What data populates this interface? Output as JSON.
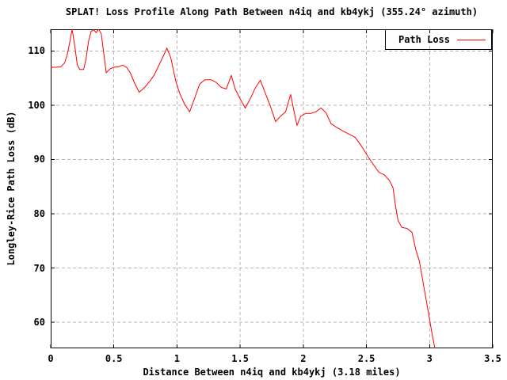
{
  "chart_data": {
    "type": "line",
    "title": "SPLAT! Loss Profile Along Path Between n4iq and kb4ykj (355.24° azimuth)",
    "xlabel": "Distance Between n4iq and kb4ykj (3.18 miles)",
    "ylabel": "Longley-Rice Path Loss (dB)",
    "legend_position": "top-right-inside-box",
    "grid": true,
    "colors": {
      "line": "#ff0000",
      "grid": "#b4b4b4",
      "border": "#000000",
      "background": "#ffffff"
    },
    "xlim": [
      0,
      3.5
    ],
    "ylim": [
      55.2,
      114.0
    ],
    "xticks": [
      0,
      0.5,
      1,
      1.5,
      2,
      2.5,
      3,
      3.5
    ],
    "xtick_labels": [
      "0",
      "0.5",
      "1",
      "1.5",
      "2",
      "2.5",
      "3",
      "3.5"
    ],
    "yticks": [
      60,
      70,
      80,
      90,
      100,
      110
    ],
    "ytick_labels": [
      "60",
      "70",
      "80",
      "90",
      "100",
      "110"
    ],
    "legend": [
      {
        "name": "Path Loss",
        "color": "#ff0000"
      }
    ],
    "series": [
      {
        "name": "Path Loss",
        "color": "#ff0000",
        "points": [
          [
            0.0,
            107.0
          ],
          [
            0.04,
            107.0
          ],
          [
            0.08,
            107.1
          ],
          [
            0.11,
            107.8
          ],
          [
            0.13,
            109.2
          ],
          [
            0.15,
            111.5
          ],
          [
            0.17,
            114.0
          ],
          [
            0.19,
            111.0
          ],
          [
            0.21,
            107.5
          ],
          [
            0.23,
            106.6
          ],
          [
            0.26,
            106.6
          ],
          [
            0.28,
            108.5
          ],
          [
            0.3,
            111.8
          ],
          [
            0.32,
            113.6
          ],
          [
            0.34,
            113.9
          ],
          [
            0.36,
            113.4
          ],
          [
            0.38,
            114.0
          ],
          [
            0.4,
            113.2
          ],
          [
            0.42,
            109.5
          ],
          [
            0.44,
            106.0
          ],
          [
            0.47,
            106.7
          ],
          [
            0.5,
            107.0
          ],
          [
            0.54,
            107.1
          ],
          [
            0.57,
            107.4
          ],
          [
            0.6,
            107.0
          ],
          [
            0.63,
            106.0
          ],
          [
            0.66,
            104.3
          ],
          [
            0.7,
            102.4
          ],
          [
            0.74,
            103.2
          ],
          [
            0.78,
            104.3
          ],
          [
            0.82,
            105.6
          ],
          [
            0.87,
            108.0
          ],
          [
            0.92,
            110.5
          ],
          [
            0.95,
            108.8
          ],
          [
            0.99,
            104.5
          ],
          [
            1.02,
            102.3
          ],
          [
            1.06,
            100.2
          ],
          [
            1.1,
            98.8
          ],
          [
            1.14,
            101.3
          ],
          [
            1.18,
            103.9
          ],
          [
            1.22,
            104.7
          ],
          [
            1.27,
            104.7
          ],
          [
            1.31,
            104.2
          ],
          [
            1.35,
            103.3
          ],
          [
            1.39,
            103.0
          ],
          [
            1.43,
            105.5
          ],
          [
            1.46,
            103.0
          ],
          [
            1.5,
            101.2
          ],
          [
            1.54,
            99.5
          ],
          [
            1.58,
            101.2
          ],
          [
            1.62,
            103.2
          ],
          [
            1.66,
            104.6
          ],
          [
            1.7,
            102.2
          ],
          [
            1.74,
            99.8
          ],
          [
            1.78,
            97.0
          ],
          [
            1.82,
            98.0
          ],
          [
            1.86,
            98.8
          ],
          [
            1.9,
            102.0
          ],
          [
            1.93,
            98.5
          ],
          [
            1.95,
            96.3
          ],
          [
            1.98,
            98.0
          ],
          [
            2.02,
            98.5
          ],
          [
            2.06,
            98.5
          ],
          [
            2.1,
            98.8
          ],
          [
            2.14,
            99.5
          ],
          [
            2.18,
            98.6
          ],
          [
            2.22,
            96.6
          ],
          [
            2.26,
            96.0
          ],
          [
            2.31,
            95.3
          ],
          [
            2.36,
            94.7
          ],
          [
            2.41,
            94.1
          ],
          [
            2.46,
            92.5
          ],
          [
            2.51,
            90.6
          ],
          [
            2.56,
            88.9
          ],
          [
            2.6,
            87.6
          ],
          [
            2.64,
            87.2
          ],
          [
            2.68,
            86.2
          ],
          [
            2.71,
            84.8
          ],
          [
            2.73,
            81.5
          ],
          [
            2.75,
            78.8
          ],
          [
            2.78,
            77.5
          ],
          [
            2.82,
            77.3
          ],
          [
            2.86,
            76.6
          ],
          [
            2.89,
            73.5
          ],
          [
            2.92,
            71.2
          ],
          [
            2.94,
            68.5
          ],
          [
            2.96,
            65.8
          ],
          [
            2.98,
            63.2
          ],
          [
            3.0,
            60.5
          ],
          [
            3.02,
            57.8
          ],
          [
            3.04,
            55.4
          ],
          [
            3.06,
            53.5
          ]
        ]
      }
    ]
  }
}
